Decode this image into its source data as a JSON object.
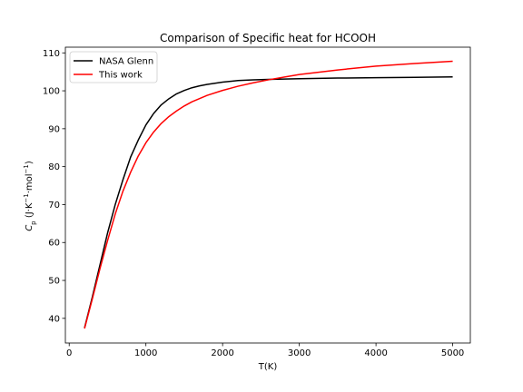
{
  "chart_data": {
    "type": "line",
    "title": "Comparison of Specific heat for HCOOH",
    "xlabel": "T(K)",
    "ylabel_parts": [
      "C",
      "p",
      " (J·K",
      "−1",
      "·mol",
      "−1",
      ")"
    ],
    "xlim": [
      -50,
      5230
    ],
    "ylim": [
      33.5,
      111.5
    ],
    "xticks": [
      0,
      1000,
      2000,
      3000,
      4000,
      5000
    ],
    "xtick_labels": [
      "0",
      "1000",
      "2000",
      "3000",
      "4000",
      "5000"
    ],
    "yticks": [
      40,
      50,
      60,
      70,
      80,
      90,
      100,
      110
    ],
    "ytick_labels": [
      "40",
      "50",
      "60",
      "70",
      "80",
      "90",
      "100",
      "110"
    ],
    "grid": false,
    "legend_position": "top-left",
    "series": [
      {
        "name": "NASA Glenn",
        "color": "#000000",
        "points": [
          [
            200,
            37.5
          ],
          [
            300,
            45.5
          ],
          [
            400,
            54.0
          ],
          [
            500,
            62.5
          ],
          [
            600,
            70.0
          ],
          [
            700,
            76.5
          ],
          [
            800,
            82.5
          ],
          [
            900,
            87.0
          ],
          [
            1000,
            91.0
          ],
          [
            1100,
            94.0
          ],
          [
            1200,
            96.3
          ],
          [
            1300,
            97.9
          ],
          [
            1400,
            99.2
          ],
          [
            1500,
            100.1
          ],
          [
            1600,
            100.8
          ],
          [
            1700,
            101.3
          ],
          [
            1800,
            101.7
          ],
          [
            1900,
            102.0
          ],
          [
            2000,
            102.3
          ],
          [
            2200,
            102.7
          ],
          [
            2400,
            102.9
          ],
          [
            2600,
            103.0
          ],
          [
            3000,
            103.2
          ],
          [
            3500,
            103.35
          ],
          [
            4000,
            103.45
          ],
          [
            4500,
            103.55
          ],
          [
            5000,
            103.65
          ]
        ]
      },
      {
        "name": "This work",
        "color": "#ff0000",
        "points": [
          [
            200,
            37.3
          ],
          [
            300,
            45.0
          ],
          [
            400,
            53.0
          ],
          [
            500,
            60.5
          ],
          [
            600,
            67.5
          ],
          [
            700,
            73.5
          ],
          [
            800,
            78.5
          ],
          [
            900,
            82.8
          ],
          [
            1000,
            86.3
          ],
          [
            1100,
            89.1
          ],
          [
            1200,
            91.4
          ],
          [
            1300,
            93.2
          ],
          [
            1400,
            94.7
          ],
          [
            1500,
            96.0
          ],
          [
            1600,
            97.1
          ],
          [
            1800,
            98.8
          ],
          [
            2000,
            100.1
          ],
          [
            2200,
            101.2
          ],
          [
            2400,
            102.1
          ],
          [
            2600,
            102.9
          ],
          [
            2800,
            103.6
          ],
          [
            3000,
            104.3
          ],
          [
            3500,
            105.5
          ],
          [
            4000,
            106.5
          ],
          [
            4500,
            107.2
          ],
          [
            5000,
            107.8
          ]
        ]
      }
    ]
  }
}
